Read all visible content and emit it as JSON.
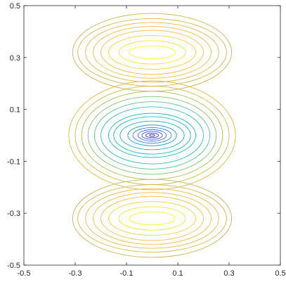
{
  "chart_data": {
    "type": "contour",
    "title": "",
    "xlabel": "",
    "ylabel": "",
    "xlim": [
      -0.5,
      0.5
    ],
    "ylim": [
      -0.5,
      0.5
    ],
    "xticks": [
      -0.5,
      -0.3,
      -0.1,
      0.1,
      0.3,
      0.5
    ],
    "yticks": [
      -0.5,
      -0.3,
      -0.1,
      0.1,
      0.3,
      0.5
    ],
    "xtick_labels": [
      "-0.5",
      "-0.3",
      "-0.1",
      "0.1",
      "0.3",
      "0.5"
    ],
    "ytick_labels": [
      "-0.5",
      "-0.3",
      "-0.1",
      "0.1",
      "0.3",
      "0.5"
    ],
    "grid": false,
    "legend": "none",
    "colormap": "parula",
    "levels": {
      "central_well": {
        "center": [
          0.0,
          0.0
        ],
        "rx": [
          0.01,
          0.025,
          0.04,
          0.055,
          0.075,
          0.095,
          0.125,
          0.15,
          0.17
        ],
        "ry": [
          0.004,
          0.009,
          0.015,
          0.022,
          0.03,
          0.04,
          0.055,
          0.072,
          0.085
        ],
        "colors": [
          "#3e26a8",
          "#4437c9",
          "#4652e6",
          "#3d6ef5",
          "#2e87f4",
          "#219ce2",
          "#14b0d2",
          "#1cbccb",
          "#25c0c4"
        ]
      },
      "side_bands": {
        "rx": [
          0.2,
          0.225,
          0.25,
          0.275,
          0.3,
          0.325
        ],
        "ry": [
          0.11,
          0.13,
          0.15,
          0.17,
          0.19,
          0.21
        ],
        "colors": [
          "#33c2ad",
          "#56c58c",
          "#7ec66c",
          "#a6c44e",
          "#c9bf3e",
          "#e3b93b"
        ]
      },
      "upper_lobe": {
        "center": [
          0.0,
          0.32
        ],
        "rx": [
          0.09,
          0.13,
          0.17,
          0.2,
          0.23,
          0.26,
          0.29,
          0.31
        ],
        "ry": [
          0.025,
          0.045,
          0.065,
          0.085,
          0.1,
          0.115,
          0.13,
          0.15
        ],
        "colors": [
          "#f9f81a",
          "#f5e62b",
          "#f8d03a",
          "#fbbd3c",
          "#f1bc40",
          "#e8b949",
          "#d8b84f",
          "#c9b653"
        ]
      },
      "lower_lobe": {
        "center": [
          0.0,
          -0.32
        ],
        "rx": [
          0.09,
          0.13,
          0.17,
          0.2,
          0.23,
          0.26,
          0.29,
          0.31
        ],
        "ry": [
          0.025,
          0.045,
          0.065,
          0.085,
          0.1,
          0.115,
          0.13,
          0.15
        ],
        "colors": [
          "#f9f81a",
          "#f5e62b",
          "#f8d03a",
          "#fbbd3c",
          "#f1bc40",
          "#e8b949",
          "#d8b84f",
          "#c9b653"
        ]
      }
    }
  }
}
